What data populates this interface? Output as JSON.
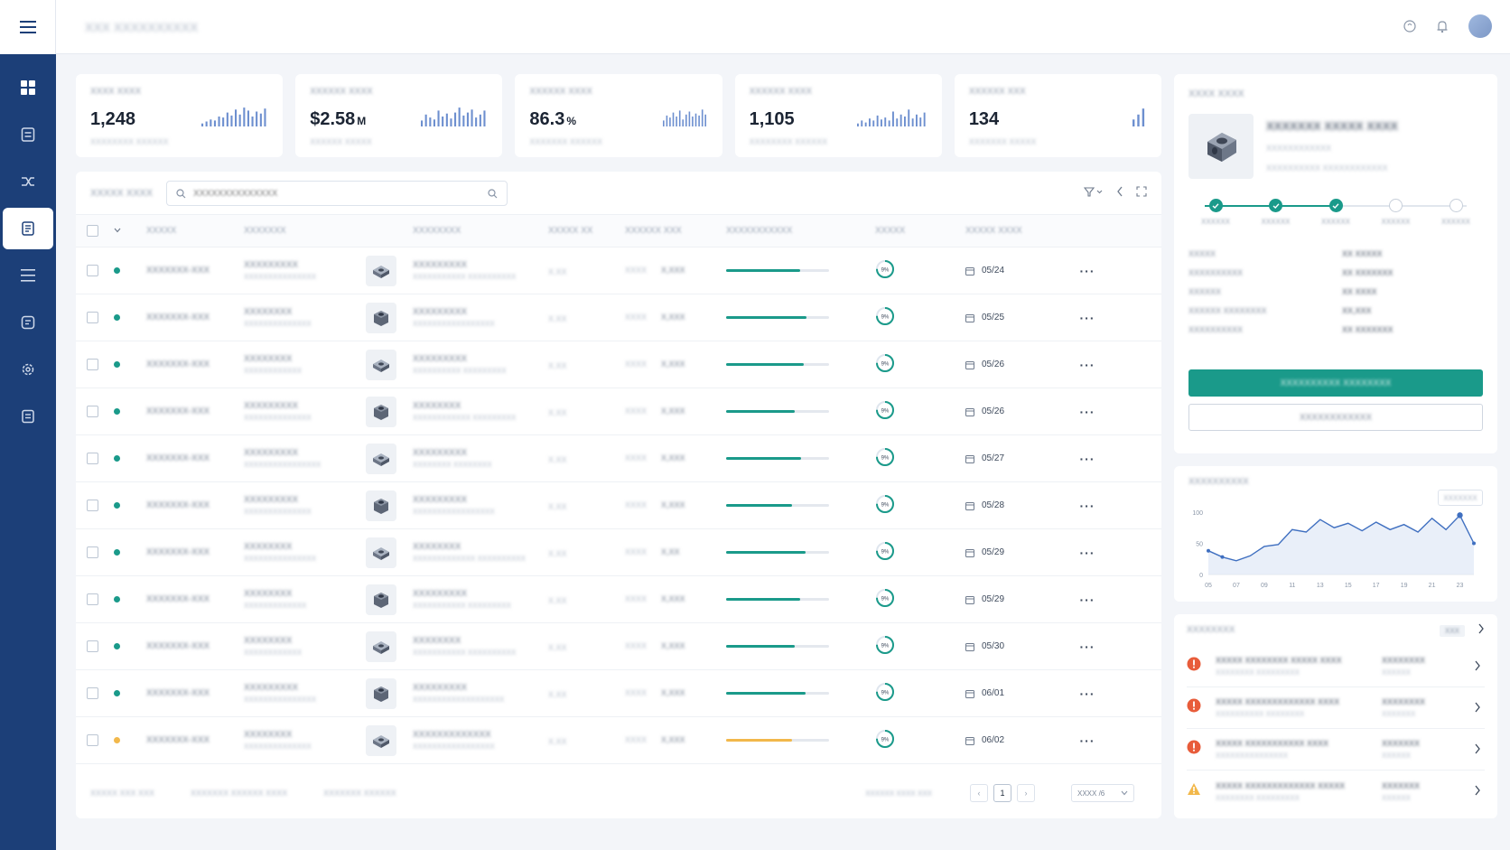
{
  "topbar": {
    "title": "XXX XXXXXXXXXX"
  },
  "kpis": [
    {
      "label": "XXXX XXXX",
      "value": "1,248",
      "unit": "",
      "sub": "XXXXXXXX XXXXXX",
      "spark": [
        0.15,
        0.25,
        0.35,
        0.3,
        0.5,
        0.45,
        0.7,
        0.55,
        0.85,
        0.6,
        0.95,
        0.8,
        0.5,
        0.75,
        0.65,
        0.9
      ]
    },
    {
      "label": "XXXXXX XXXX",
      "value": "$2.58",
      "unit": "M",
      "sub": "XXXXXX XXXXX",
      "spark": [
        0.3,
        0.6,
        0.45,
        0.35,
        0.8,
        0.5,
        0.65,
        0.4,
        0.7,
        0.95,
        0.55,
        0.7,
        0.85,
        0.45,
        0.6,
        0.8
      ]
    },
    {
      "label": "XXXXXX XXXX",
      "value": "86.3",
      "unit": "%",
      "sub": "XXXXXXX XXXXXX",
      "spark": [
        0.3,
        0.55,
        0.45,
        0.7,
        0.5,
        0.8,
        0.35,
        0.6,
        0.75,
        0.5,
        0.65,
        0.55,
        0.85,
        0.6
      ]
    },
    {
      "label": "XXXXXX XXXX",
      "value": "1,105",
      "unit": "",
      "sub": "XXXXXXXX XXXXXX",
      "spark": [
        0.15,
        0.3,
        0.2,
        0.4,
        0.3,
        0.55,
        0.35,
        0.45,
        0.3,
        0.75,
        0.4,
        0.6,
        0.5,
        0.85,
        0.4,
        0.6,
        0.45,
        0.7
      ]
    },
    {
      "label": "XXXXXX XXX",
      "value": "134",
      "unit": "",
      "sub": "XXXXXXX XXXXX",
      "spark": [
        0.35,
        0.6,
        0.9
      ]
    }
  ],
  "table": {
    "toolbar_label": "XXXXX XXXX",
    "search_placeholder": "XXXXXXXXXXXXXX",
    "columns": [
      "XXXXX",
      "XXXXXXX",
      "XXXXXXXX",
      "XXXXX XX",
      "XXXXXX XXX",
      "XXXXXXXXXXX",
      "XXXXX",
      "XXXXX XXXX"
    ],
    "rows": [
      {
        "id": "XXXXXXX-XXX",
        "type": "XXXXXXXXX",
        "type_sub": "XXXXXXXXXXXXXXX",
        "name": "XXXXXXXXX",
        "name_sub": "XXXXXXXXXXX XXXXXXXXXX",
        "a": "X.XX",
        "b1": "XXXX",
        "b2": "X,XXX",
        "progress": 0.72,
        "pct": "9%",
        "date": "05/24",
        "status": "#1a9a8a"
      },
      {
        "id": "XXXXXXX-XXX",
        "type": "XXXXXXXX",
        "type_sub": "XXXXXXXXXXXXXX",
        "name": "XXXXXXXXX",
        "name_sub": "XXXXXXXXXXXXXXXXX",
        "a": "X.XX",
        "b1": "XXXX",
        "b2": "X,XXX",
        "progress": 0.78,
        "pct": "9%",
        "date": "05/25",
        "status": "#1a9a8a"
      },
      {
        "id": "XXXXXXX-XXX",
        "type": "XXXXXXXX",
        "type_sub": "XXXXXXXXXXXX",
        "name": "XXXXXXXXX",
        "name_sub": "XXXXXXXXXX XXXXXXXXX",
        "a": "X.XX",
        "b1": "XXXX",
        "b2": "X,XXX",
        "progress": 0.75,
        "pct": "9%",
        "date": "05/26",
        "status": "#1a9a8a"
      },
      {
        "id": "XXXXXXX-XXX",
        "type": "XXXXXXXXX",
        "type_sub": "XXXXXXXXXXXXXX",
        "name": "XXXXXXXX",
        "name_sub": "XXXXXXXXXXXX XXXXXXXXX",
        "a": "X.XX",
        "b1": "XXXX",
        "b2": "X,XXX",
        "progress": 0.67,
        "pct": "9%",
        "date": "05/26",
        "status": "#1a9a8a"
      },
      {
        "id": "XXXXXXX-XXX",
        "type": "XXXXXXXXX",
        "type_sub": "XXXXXXXXXXXXXXXX",
        "name": "XXXXXXXXX",
        "name_sub": "XXXXXXXX XXXXXXXX",
        "a": "X.XX",
        "b1": "XXXX",
        "b2": "X,XXX",
        "progress": 0.73,
        "pct": "9%",
        "date": "05/27",
        "status": "#1a9a8a"
      },
      {
        "id": "XXXXXXX-XXX",
        "type": "XXXXXXXXX",
        "type_sub": "XXXXXXXXXXXXXX",
        "name": "XXXXXXXXX",
        "name_sub": "XXXXXXXXXXXXXXXXX",
        "a": "X.XX",
        "b1": "XXXX",
        "b2": "X,XXX",
        "progress": 0.64,
        "pct": "9%",
        "date": "05/28",
        "status": "#1a9a8a"
      },
      {
        "id": "XXXXXXX-XXX",
        "type": "XXXXXXXX",
        "type_sub": "XXXXXXXXXXXXXXX",
        "name": "XXXXXXXX",
        "name_sub": "XXXXXXXXXXXXX XXXXXXXXXX",
        "a": "X.XX",
        "b1": "XXXX",
        "b2": "X,XX",
        "progress": 0.77,
        "pct": "9%",
        "date": "05/29",
        "status": "#1a9a8a"
      },
      {
        "id": "XXXXXXX-XXX",
        "type": "XXXXXXXX",
        "type_sub": "XXXXXXXXXXXXX",
        "name": "XXXXXXXXX",
        "name_sub": "XXXXXXXXXXX XXXXXXXXX",
        "a": "X.XX",
        "b1": "XXXX",
        "b2": "X,XXX",
        "progress": 0.72,
        "pct": "9%",
        "date": "05/29",
        "status": "#1a9a8a"
      },
      {
        "id": "XXXXXXX-XXX",
        "type": "XXXXXXXX",
        "type_sub": "XXXXXXXXXXXX",
        "name": "XXXXXXXX",
        "name_sub": "XXXXXXXXXXX XXXXXXXXXX",
        "a": "X.XX",
        "b1": "XXXX",
        "b2": "X,XXX",
        "progress": 0.67,
        "pct": "9%",
        "date": "05/30",
        "status": "#1a9a8a"
      },
      {
        "id": "XXXXXXX-XXX",
        "type": "XXXXXXXXX",
        "type_sub": "XXXXXXXXXXXXXXX",
        "name": "XXXXXXXXX",
        "name_sub": "XXXXXXXXXXXXXXXXXXX",
        "a": "X.XX",
        "b1": "XXXX",
        "b2": "X,XXX",
        "progress": 0.77,
        "pct": "9%",
        "date": "06/01",
        "status": "#1a9a8a"
      },
      {
        "id": "XXXXXXX-XXX",
        "type": "XXXXXXXX",
        "type_sub": "XXXXXXXXXXXXXX",
        "name": "XXXXXXXXXXXXX",
        "name_sub": "XXXXXXXXXXXXXXXXX",
        "a": "X.XX",
        "b1": "XXXX",
        "b2": "X,XXX",
        "progress": 0.64,
        "pct": "9%",
        "date": "06/02",
        "status": "#f2b84b"
      }
    ],
    "footer": {
      "left": "XXXXX XXX XXX",
      "mid1": "XXXXXXX XXXXXX XXXX",
      "mid2": "XXXXXXX XXXXXX",
      "page_label": "XXXXXX XXXX XXX",
      "current_page": "1",
      "per_page": "XXXX /6"
    }
  },
  "detail": {
    "head": "XXXX XXXX",
    "product_name": "XXXXXXX XXXXX XXXX",
    "product_line1": "XXXXXXXXXXXX",
    "product_line2": "XXXXXXXXXX XXXXXXXXXXXX",
    "steps": [
      {
        "label": "XXXXXX",
        "done": true
      },
      {
        "label": "XXXXXX",
        "done": true
      },
      {
        "label": "XXXXXX",
        "done": true
      },
      {
        "label": "XXXXXX",
        "done": false
      },
      {
        "label": "XXXXXX",
        "done": false
      }
    ],
    "fields": [
      {
        "k": "XXXXX",
        "v": "XX XXXXX"
      },
      {
        "k": "XXXXXXXXXX",
        "v": "XX XXXXXXX"
      },
      {
        "k": "XXXXXX",
        "v": "XX XXXX"
      },
      {
        "k": "XXXXXX XXXXXXXX",
        "v": "XX,XXX"
      },
      {
        "k": "XXXXXXXXXX",
        "v": "XX XXXXXXX"
      }
    ],
    "primary_action": "XXXXXXXXXX XXXXXXXX",
    "secondary_action": "XXXXXXXXXXXX"
  },
  "trend": {
    "head": "XXXXXXXXXX",
    "range": "XXXXXXX",
    "chart_data": {
      "type": "line",
      "x": [
        "05",
        "06",
        "07",
        "08",
        "09",
        "10",
        "11",
        "12",
        "13",
        "14",
        "15",
        "16",
        "17",
        "18",
        "19",
        "20",
        "21",
        "22",
        "23",
        "24"
      ],
      "xticks": [
        "05",
        "07",
        "09",
        "11",
        "13",
        "15",
        "17",
        "19",
        "21",
        "23"
      ],
      "values": [
        38,
        28,
        22,
        30,
        45,
        48,
        72,
        68,
        88,
        75,
        82,
        70,
        84,
        72,
        80,
        68,
        90,
        72,
        95,
        50
      ],
      "yticks": [
        "0",
        "50",
        "100"
      ],
      "ylim": [
        0,
        110
      ]
    }
  },
  "alerts": {
    "head": "XXXXXXXX",
    "count": "XXX",
    "items": [
      {
        "level": "error",
        "title": "XXXXX XXXXXXXX XXXXX XXXX",
        "sub": "XXXXXXXX XXXXXXXXX",
        "meta": "XXXXXXXX",
        "meta2": "XXXXXX"
      },
      {
        "level": "error",
        "title": "XXXXX XXXXXXXXXXXXX XXXX",
        "sub": "XXXXXXXXXX XXXXXXXX",
        "meta": "XXXXXXXX",
        "meta2": "XXXXXXX"
      },
      {
        "level": "error",
        "title": "XXXXX XXXXXXXXXXX XXXX",
        "sub": "XXXXXXXXXXXXXXX",
        "meta": "XXXXXXX",
        "meta2": "XXXXXX"
      },
      {
        "level": "warning",
        "title": "XXXXX XXXXXXXXXXXXX XXXXX",
        "sub": "XXXXXXXX XXXXXXXXX",
        "meta": "XXXXXXX",
        "meta2": "XXXXXX"
      }
    ],
    "colors": {
      "error": "#e85c3a",
      "warning": "#f2b84b"
    }
  }
}
